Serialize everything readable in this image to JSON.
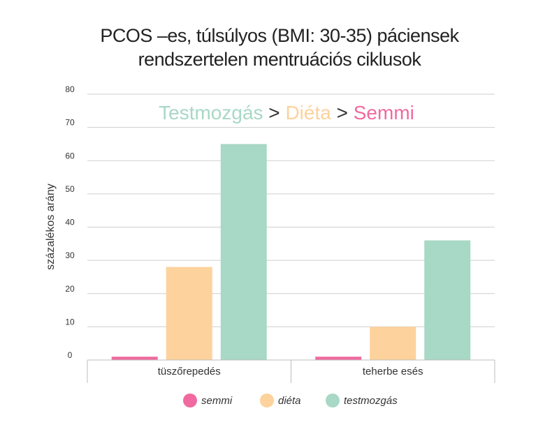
{
  "chart_data": {
    "type": "bar",
    "title_line1": "PCOS –es, túlsúlyos (BMI: 30-35) páciensek",
    "title_line2": "rendszertelen mentruációs ciklusok",
    "ylabel": "százalékos arány",
    "ylim": [
      0,
      80
    ],
    "yticks": [
      "0",
      "10",
      "20",
      "30",
      "40",
      "50",
      "60",
      "70",
      "80"
    ],
    "ytick_values": [
      0,
      10,
      20,
      30,
      40,
      50,
      60,
      70,
      80
    ],
    "categories": [
      "tüszőrepedés",
      "teherbe esés"
    ],
    "series": [
      {
        "name": "semmi",
        "color": "#f06a9f",
        "values": [
          1,
          1
        ]
      },
      {
        "name": "diéta",
        "color": "#fdd29c",
        "values": [
          28,
          10
        ]
      },
      {
        "name": "testmozgás",
        "color": "#a8d8c6",
        "values": [
          65,
          36
        ]
      }
    ],
    "annotation": {
      "parts": [
        {
          "text": "Testmozgás",
          "color": "#a8d8c6"
        },
        {
          "text": " > ",
          "color": "#333333"
        },
        {
          "text": "Diéta",
          "color": "#fdd29c"
        },
        {
          "text": " > ",
          "color": "#333333"
        },
        {
          "text": "Semmi",
          "color": "#f06a9f"
        }
      ]
    },
    "grid": true,
    "legend_position": "bottom"
  }
}
